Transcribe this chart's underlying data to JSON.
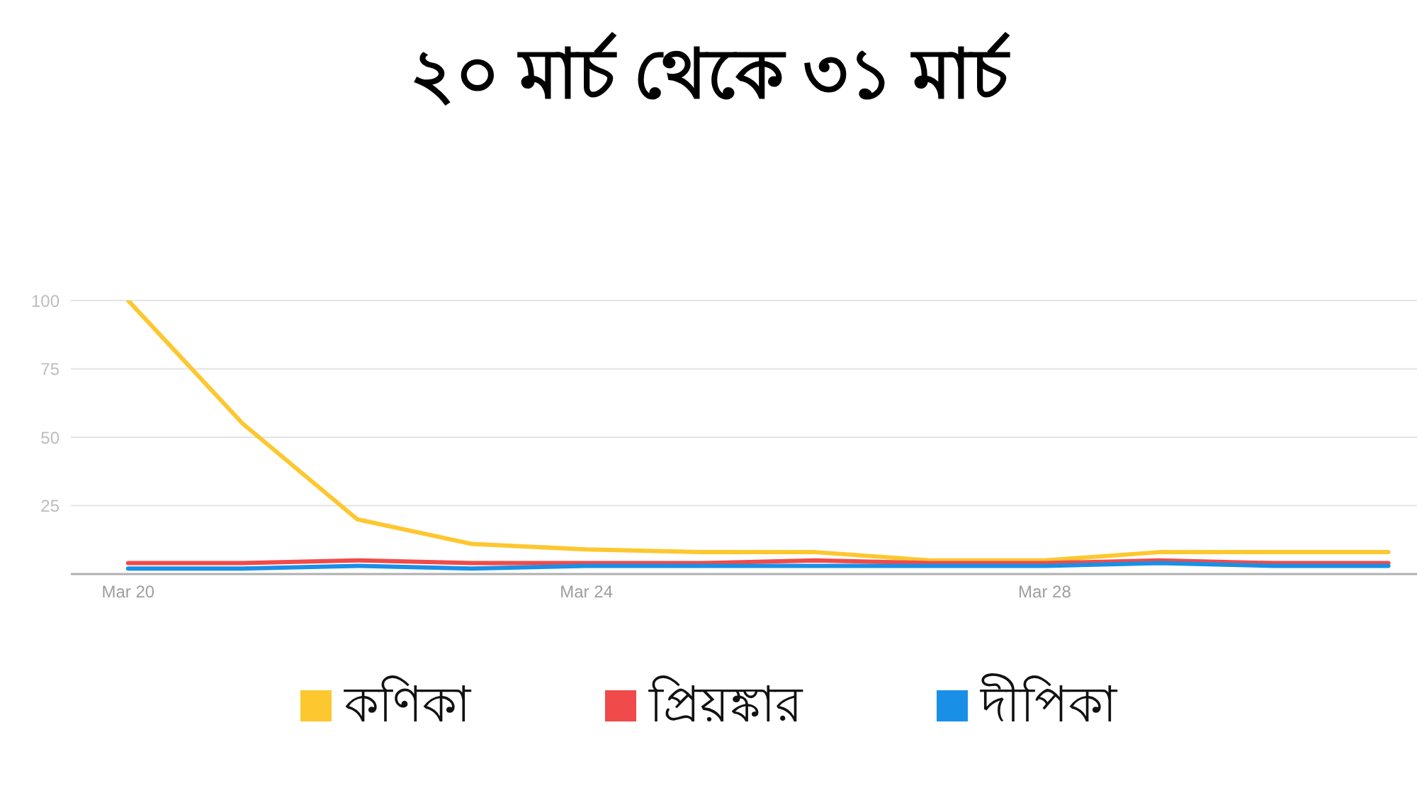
{
  "chart_data": {
    "type": "line",
    "title": "২০ মার্চ থেকে ৩১ মার্চ",
    "x": [
      "--03-20",
      "--03-21",
      "--03-22",
      "--03-23",
      "--03-24",
      "--03-25",
      "--03-26",
      "--03-27",
      "--03-28",
      "--03-29",
      "--03-30",
      "--03-31"
    ],
    "series": [
      {
        "name": "কণিকা",
        "color": "#fdc72f",
        "values": [
          100,
          55,
          20,
          11,
          9,
          8,
          8,
          5,
          5,
          8,
          8,
          8
        ]
      },
      {
        "name": "প্রিয়ঙ্কার",
        "color": "#f04a4a",
        "values": [
          4,
          4,
          5,
          4,
          4,
          4,
          5,
          4,
          4,
          5,
          4,
          4
        ]
      },
      {
        "name": "দীপিকা",
        "color": "#1a8fe6",
        "values": [
          2,
          2,
          3,
          2,
          3,
          3,
          3,
          3,
          3,
          4,
          3,
          3
        ]
      }
    ],
    "xlim": [
      "--03-19T12:00",
      "--03-31T06:00"
    ],
    "xticks": [
      {
        "value": "--03-20",
        "label": "Mar 20"
      },
      {
        "value": "--03-24",
        "label": "Mar 24"
      },
      {
        "value": "--03-28",
        "label": "Mar 28"
      }
    ],
    "ylim": [
      0,
      100
    ],
    "yticks": [
      {
        "value": 0,
        "label": null
      },
      25,
      50,
      75,
      100
    ],
    "grid": "y",
    "legend": "bottom"
  }
}
